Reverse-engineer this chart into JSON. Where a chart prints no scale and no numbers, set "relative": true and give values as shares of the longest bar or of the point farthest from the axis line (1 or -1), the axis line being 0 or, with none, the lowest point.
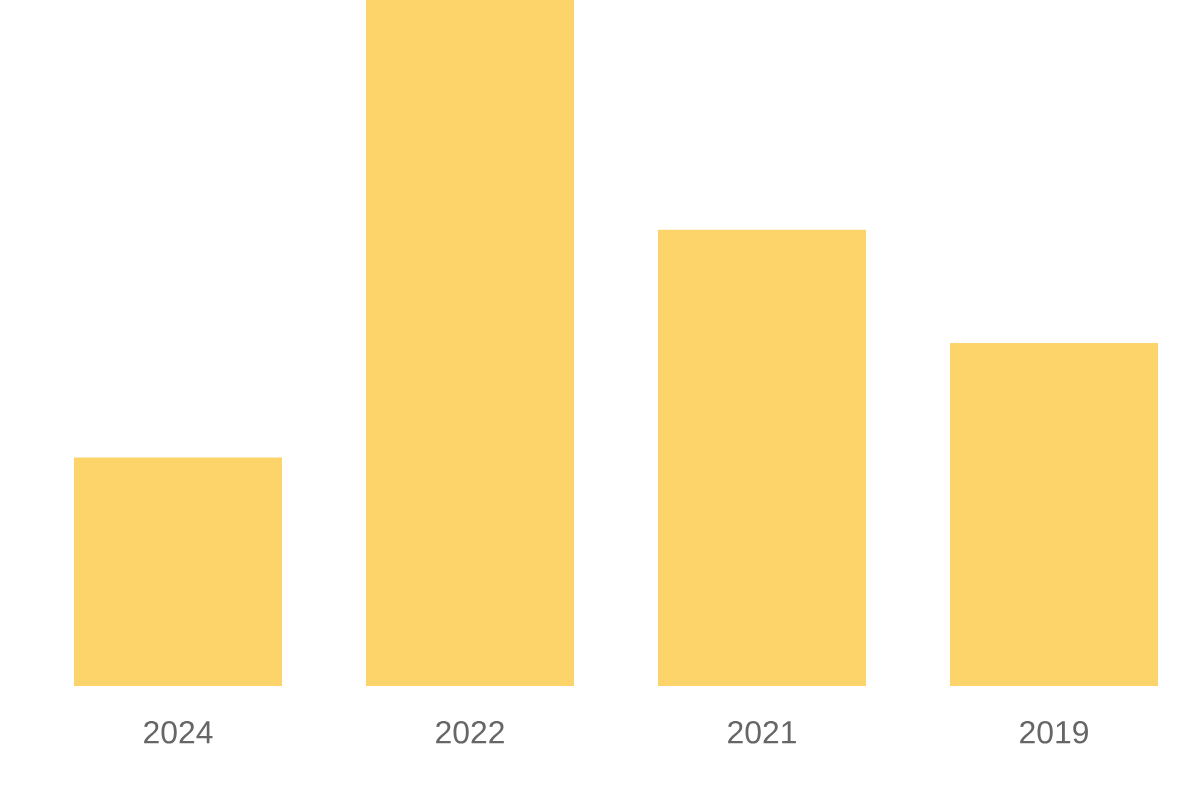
{
  "chart_data": {
    "type": "bar",
    "categories": [
      "2024",
      "2022",
      "2021",
      "2019"
    ],
    "values": [
      0.333,
      1,
      0.665,
      0.5
    ],
    "color": "#fdd46a",
    "relative": true
  }
}
